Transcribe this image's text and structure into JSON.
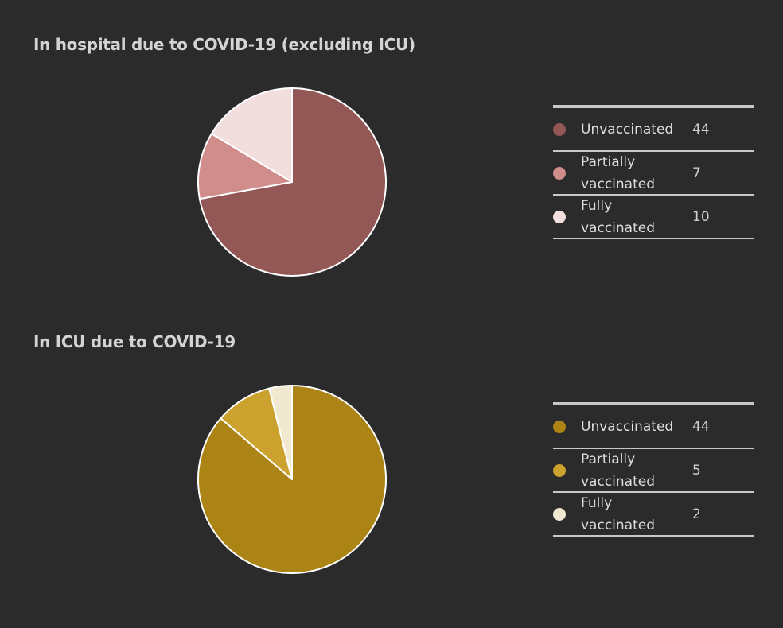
{
  "colors": {
    "background": "#2b2b2b",
    "slice_stroke": "#ffffff"
  },
  "chart_data": [
    {
      "type": "pie",
      "title": "In hospital due to COVID-19 (excluding ICU)",
      "legend_position": "right",
      "series": [
        {
          "label": "Unvaccinated",
          "value": 44,
          "color": "#935856"
        },
        {
          "label": "Partially vaccinated",
          "value": 7,
          "color": "#d08d8b"
        },
        {
          "label": "Fully vaccinated",
          "value": 10,
          "color": "#f2dedd"
        }
      ]
    },
    {
      "type": "pie",
      "title": "In ICU due to COVID-19",
      "legend_position": "right",
      "series": [
        {
          "label": "Unvaccinated",
          "value": 44,
          "color": "#ac8416"
        },
        {
          "label": "Partially vaccinated",
          "value": 5,
          "color": "#cba22d"
        },
        {
          "label": "Fully vaccinated",
          "value": 2,
          "color": "#f1e9cf"
        }
      ]
    }
  ]
}
